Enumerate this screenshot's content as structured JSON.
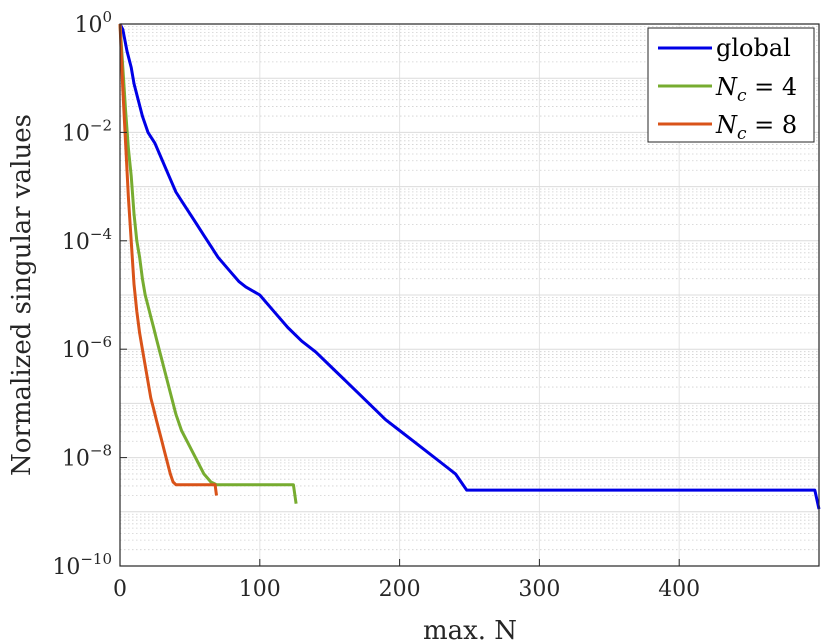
{
  "chart_data": {
    "type": "line",
    "xlabel": "max. N",
    "ylabel": "Normalized singular values",
    "xlim": [
      0,
      500
    ],
    "ylim_exponent": [
      -10,
      0
    ],
    "yscale": "log",
    "grid": true,
    "minor_grid": true,
    "legend_position": "top-right",
    "x_ticks": [
      "0",
      "100",
      "200",
      "300",
      "400"
    ],
    "x_tick_values": [
      0,
      100,
      200,
      300,
      400
    ],
    "y_ticks_exponent": [
      0,
      -2,
      -4,
      -6,
      -8,
      -10
    ],
    "series": [
      {
        "name": "global",
        "color": "#0000e6",
        "points": [
          [
            0,
            0
          ],
          [
            2,
            -0.1
          ],
          [
            5,
            -0.5
          ],
          [
            8,
            -0.8
          ],
          [
            10,
            -1.1
          ],
          [
            13,
            -1.4
          ],
          [
            16,
            -1.7
          ],
          [
            20,
            -2.0
          ],
          [
            25,
            -2.2
          ],
          [
            30,
            -2.5
          ],
          [
            35,
            -2.8
          ],
          [
            40,
            -3.1
          ],
          [
            45,
            -3.3
          ],
          [
            50,
            -3.5
          ],
          [
            55,
            -3.7
          ],
          [
            60,
            -3.9
          ],
          [
            65,
            -4.1
          ],
          [
            70,
            -4.3
          ],
          [
            75,
            -4.45
          ],
          [
            80,
            -4.6
          ],
          [
            85,
            -4.75
          ],
          [
            90,
            -4.85
          ],
          [
            100,
            -5.0
          ],
          [
            110,
            -5.3
          ],
          [
            120,
            -5.6
          ],
          [
            130,
            -5.85
          ],
          [
            140,
            -6.05
          ],
          [
            150,
            -6.3
          ],
          [
            160,
            -6.55
          ],
          [
            170,
            -6.8
          ],
          [
            180,
            -7.05
          ],
          [
            190,
            -7.3
          ],
          [
            200,
            -7.5
          ],
          [
            210,
            -7.7
          ],
          [
            220,
            -7.9
          ],
          [
            230,
            -8.1
          ],
          [
            240,
            -8.3
          ],
          [
            248,
            -8.6
          ],
          [
            252,
            -8.6
          ],
          [
            300,
            -8.6
          ],
          [
            350,
            -8.6
          ],
          [
            400,
            -8.6
          ],
          [
            450,
            -8.6
          ],
          [
            497,
            -8.6
          ],
          [
            500,
            -8.95
          ]
        ]
      },
      {
        "name": "N_c = 4",
        "color": "#77ac30",
        "points": [
          [
            0,
            0
          ],
          [
            2,
            -0.8
          ],
          [
            4,
            -1.6
          ],
          [
            6,
            -2.3
          ],
          [
            8,
            -2.8
          ],
          [
            10,
            -3.5
          ],
          [
            12,
            -4.0
          ],
          [
            14,
            -4.3
          ],
          [
            16,
            -4.7
          ],
          [
            18,
            -5.0
          ],
          [
            20,
            -5.2
          ],
          [
            22,
            -5.4
          ],
          [
            24,
            -5.6
          ],
          [
            26,
            -5.8
          ],
          [
            28,
            -6.0
          ],
          [
            30,
            -6.2
          ],
          [
            32,
            -6.4
          ],
          [
            34,
            -6.6
          ],
          [
            36,
            -6.8
          ],
          [
            38,
            -7.0
          ],
          [
            40,
            -7.2
          ],
          [
            44,
            -7.5
          ],
          [
            48,
            -7.7
          ],
          [
            52,
            -7.9
          ],
          [
            56,
            -8.1
          ],
          [
            60,
            -8.3
          ],
          [
            65,
            -8.45
          ],
          [
            69,
            -8.5
          ],
          [
            80,
            -8.5
          ],
          [
            100,
            -8.5
          ],
          [
            124,
            -8.5
          ],
          [
            126,
            -8.85
          ]
        ]
      },
      {
        "name": "N_c = 8",
        "color": "#d95319",
        "points": [
          [
            0,
            0
          ],
          [
            2,
            -1.2
          ],
          [
            4,
            -2.2
          ],
          [
            6,
            -3.2
          ],
          [
            8,
            -4.0
          ],
          [
            10,
            -4.8
          ],
          [
            12,
            -5.3
          ],
          [
            14,
            -5.7
          ],
          [
            16,
            -6.0
          ],
          [
            18,
            -6.3
          ],
          [
            20,
            -6.6
          ],
          [
            22,
            -6.9
          ],
          [
            24,
            -7.1
          ],
          [
            26,
            -7.3
          ],
          [
            28,
            -7.5
          ],
          [
            30,
            -7.7
          ],
          [
            32,
            -7.9
          ],
          [
            34,
            -8.1
          ],
          [
            36,
            -8.3
          ],
          [
            38,
            -8.45
          ],
          [
            40,
            -8.5
          ],
          [
            48,
            -8.5
          ],
          [
            60,
            -8.5
          ],
          [
            68,
            -8.5
          ],
          [
            69,
            -8.7
          ]
        ]
      }
    ]
  }
}
